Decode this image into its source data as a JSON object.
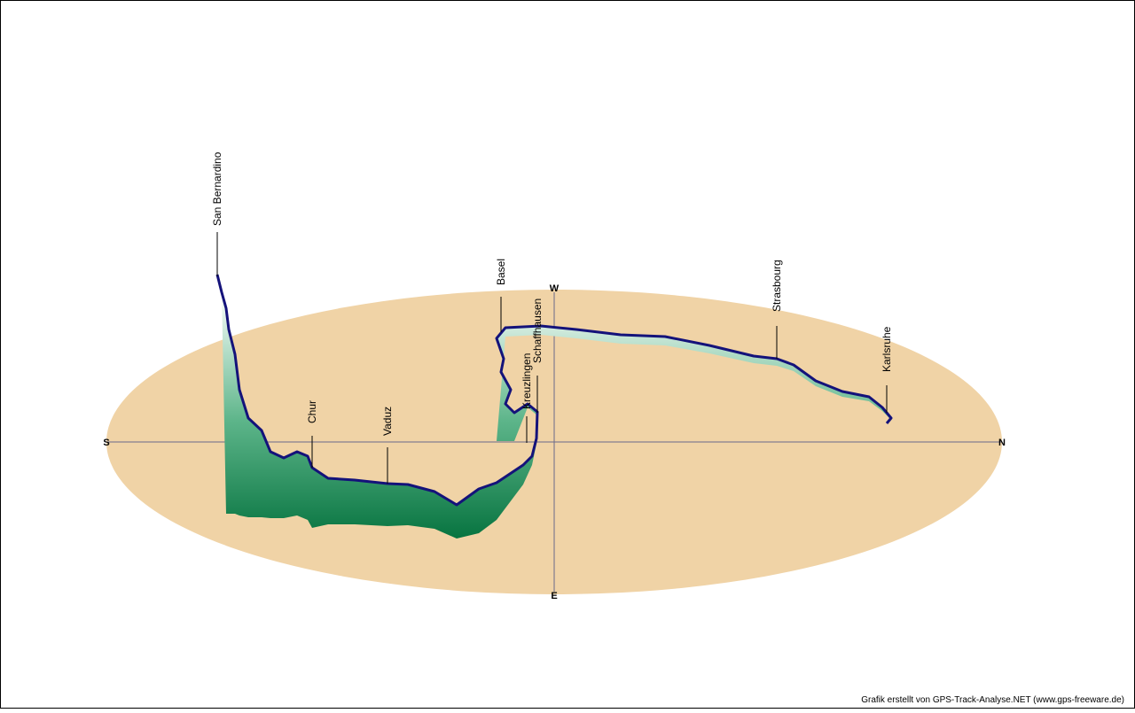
{
  "compass": {
    "south": "S",
    "north": "N",
    "west": "W",
    "east": "E"
  },
  "places": [
    "San Bernardino",
    "Chur",
    "Vaduz",
    "Basel",
    "Kreuzlingen",
    "Schaffhausen",
    "Strasbourg",
    "Karlsruhe"
  ],
  "credit": "Grafik erstellt von GPS-Track-Analyse.NET (www.gps-freeware.de)"
}
